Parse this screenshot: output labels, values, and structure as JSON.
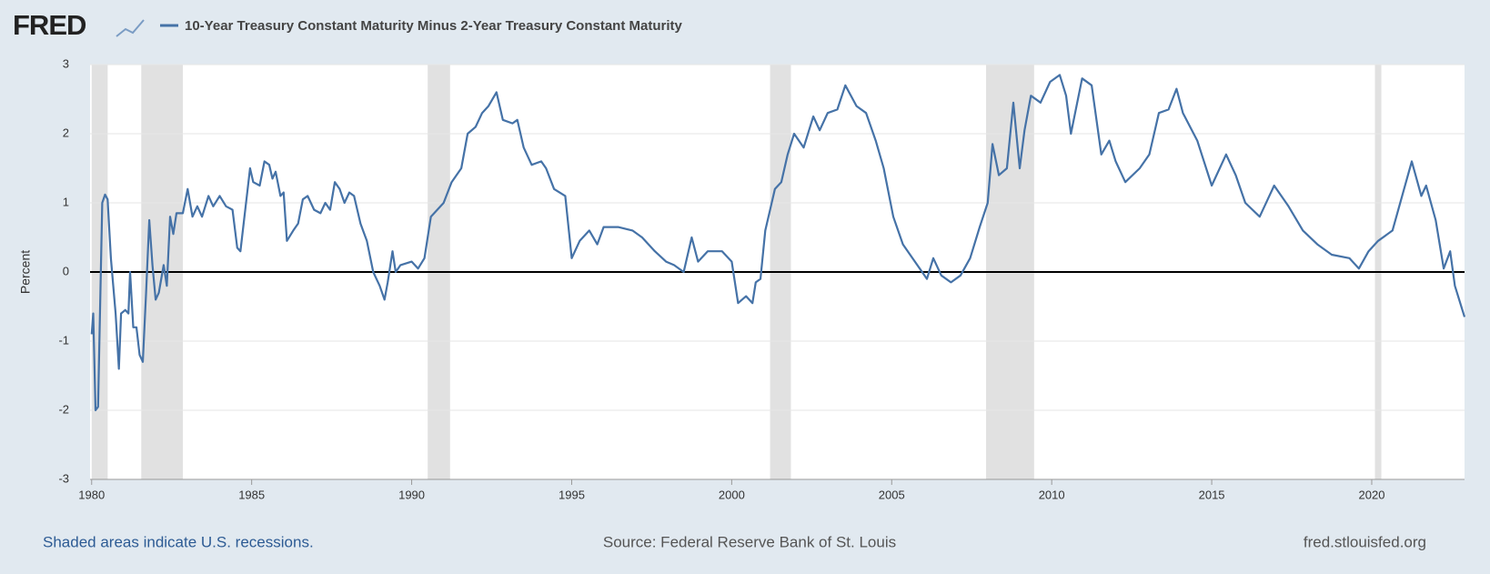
{
  "chart_data": {
    "type": "line",
    "logo": "FRED",
    "ylabel": "Percent",
    "footer_left": "Shaded areas indicate U.S. recessions.",
    "footer_center": "Source: Federal Reserve Bank of St. Louis",
    "footer_right": "fred.stlouisfed.org",
    "xlim": [
      1979.95,
      2022.9
    ],
    "xticks": [
      1980,
      1985,
      1990,
      1995,
      2000,
      2005,
      2010,
      2015,
      2020
    ],
    "ylim": [
      -3,
      3
    ],
    "yticks": [
      -3,
      -2,
      -1,
      0,
      1,
      2,
      3
    ],
    "grid": true,
    "recessions": [
      [
        1980.0,
        1980.5
      ],
      [
        1981.55,
        1982.85
      ],
      [
        1990.5,
        1991.2
      ],
      [
        2001.2,
        2001.85
      ],
      [
        2007.95,
        2009.45
      ],
      [
        2020.1,
        2020.3
      ]
    ],
    "x": [
      1980.0,
      1980.05,
      1980.12,
      1980.2,
      1980.33,
      1980.42,
      1980.5,
      1980.6,
      1980.75,
      1980.85,
      1980.92,
      1981.05,
      1981.15,
      1981.2,
      1981.3,
      1981.4,
      1981.5,
      1981.6,
      1981.7,
      1981.8,
      1981.9,
      1982.0,
      1982.1,
      1982.25,
      1982.35,
      1982.45,
      1982.55,
      1982.65,
      1982.85,
      1983.0,
      1983.15,
      1983.3,
      1983.45,
      1983.65,
      1983.8,
      1984.0,
      1984.2,
      1984.4,
      1984.55,
      1984.65,
      1984.8,
      1984.95,
      1985.05,
      1985.25,
      1985.4,
      1985.55,
      1985.65,
      1985.75,
      1985.9,
      1986.0,
      1986.1,
      1986.3,
      1986.45,
      1986.6,
      1986.75,
      1986.95,
      1987.15,
      1987.3,
      1987.45,
      1987.6,
      1987.75,
      1987.9,
      1988.05,
      1988.2,
      1988.4,
      1988.6,
      1988.8,
      1989.0,
      1989.15,
      1989.25,
      1989.4,
      1989.5,
      1989.65,
      1990.0,
      1990.2,
      1990.4,
      1990.6,
      1990.8,
      1991.0,
      1991.25,
      1991.55,
      1991.75,
      1992.0,
      1992.2,
      1992.4,
      1992.65,
      1992.85,
      1993.15,
      1993.3,
      1993.5,
      1993.75,
      1994.05,
      1994.2,
      1994.45,
      1994.8,
      1995.0,
      1995.25,
      1995.55,
      1995.8,
      1996.0,
      1996.45,
      1996.9,
      1997.2,
      1997.6,
      1997.95,
      1998.2,
      1998.5,
      1998.75,
      1998.95,
      1999.25,
      1999.7,
      2000.0,
      2000.2,
      2000.45,
      2000.65,
      2000.75,
      2000.9,
      2001.05,
      2001.35,
      2001.55,
      2001.75,
      2001.95,
      2002.25,
      2002.55,
      2002.75,
      2003.0,
      2003.3,
      2003.55,
      2003.9,
      2004.2,
      2004.5,
      2004.75,
      2005.05,
      2005.35,
      2005.65,
      2006.1,
      2006.3,
      2006.55,
      2006.85,
      2007.15,
      2007.45,
      2007.75,
      2008.0,
      2008.15,
      2008.35,
      2008.6,
      2008.8,
      2009.0,
      2009.15,
      2009.35,
      2009.65,
      2009.95,
      2010.25,
      2010.45,
      2010.6,
      2010.95,
      2011.25,
      2011.55,
      2011.8,
      2012.0,
      2012.3,
      2012.75,
      2013.05,
      2013.35,
      2013.65,
      2013.9,
      2014.1,
      2014.55,
      2015.0,
      2015.45,
      2015.75,
      2016.05,
      2016.5,
      2016.95,
      2017.4,
      2017.85,
      2018.3,
      2018.75,
      2019.3,
      2019.6,
      2019.9,
      2020.2,
      2020.65,
      2020.95,
      2021.25,
      2021.55,
      2021.7,
      2022.0,
      2022.25,
      2022.45,
      2022.6,
      2022.9
    ],
    "series": [
      {
        "name": "10-Year Treasury Constant Maturity Minus 2-Year Treasury Constant Maturity",
        "color": "#4572a7",
        "values": [
          -0.9,
          -0.6,
          -2.0,
          -1.95,
          1.0,
          1.12,
          1.05,
          0.2,
          -0.6,
          -1.4,
          -0.6,
          -0.55,
          -0.6,
          0.0,
          -0.8,
          -0.8,
          -1.2,
          -1.3,
          -0.3,
          0.75,
          0.1,
          -0.4,
          -0.3,
          0.1,
          -0.2,
          0.8,
          0.55,
          0.85,
          0.85,
          1.2,
          0.8,
          0.95,
          0.8,
          1.1,
          0.95,
          1.1,
          0.95,
          0.9,
          0.35,
          0.3,
          0.9,
          1.5,
          1.3,
          1.25,
          1.6,
          1.55,
          1.35,
          1.45,
          1.1,
          1.15,
          0.45,
          0.6,
          0.7,
          1.05,
          1.1,
          0.9,
          0.85,
          1.0,
          0.9,
          1.3,
          1.2,
          1.0,
          1.15,
          1.1,
          0.7,
          0.45,
          0.0,
          -0.2,
          -0.4,
          -0.15,
          0.3,
          0.0,
          0.1,
          0.15,
          0.05,
          0.2,
          0.8,
          0.9,
          1.0,
          1.3,
          1.5,
          2.0,
          2.1,
          2.3,
          2.4,
          2.6,
          2.2,
          2.15,
          2.2,
          1.8,
          1.55,
          1.6,
          1.5,
          1.2,
          1.1,
          0.2,
          0.45,
          0.6,
          0.4,
          0.65,
          0.65,
          0.6,
          0.5,
          0.3,
          0.15,
          0.1,
          0.0,
          0.5,
          0.15,
          0.3,
          0.3,
          0.15,
          -0.45,
          -0.35,
          -0.45,
          -0.15,
          -0.1,
          0.6,
          1.2,
          1.3,
          1.7,
          2.0,
          1.8,
          2.25,
          2.05,
          2.3,
          2.35,
          2.7,
          2.4,
          2.3,
          1.9,
          1.5,
          0.8,
          0.4,
          0.2,
          -0.1,
          0.2,
          -0.05,
          -0.15,
          -0.05,
          0.2,
          0.65,
          1.0,
          1.85,
          1.4,
          1.5,
          2.45,
          1.5,
          2.05,
          2.55,
          2.45,
          2.75,
          2.85,
          2.55,
          2.0,
          2.8,
          2.7,
          1.7,
          1.9,
          1.6,
          1.3,
          1.5,
          1.7,
          2.3,
          2.35,
          2.65,
          2.3,
          1.9,
          1.25,
          1.7,
          1.4,
          1.0,
          0.8,
          1.25,
          0.95,
          0.6,
          0.4,
          0.25,
          0.2,
          0.05,
          0.3,
          0.45,
          0.6,
          1.1,
          1.6,
          1.1,
          1.25,
          0.75,
          0.05,
          0.3,
          -0.2,
          -0.65
        ]
      }
    ]
  }
}
